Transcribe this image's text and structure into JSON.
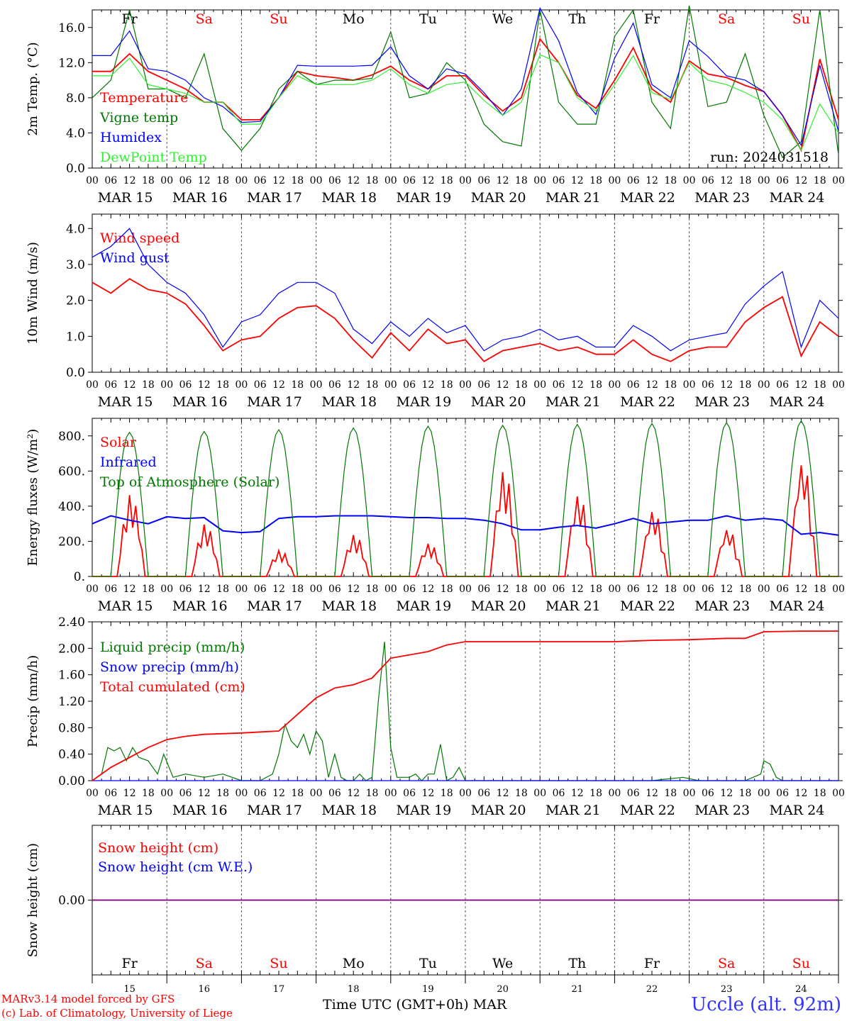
{
  "run_label": "run: 2024031518",
  "x_axis_title": "Time UTC (GMT+0h)",
  "month_label": "MAR",
  "station": "Uccle (alt. 92m)",
  "credits": [
    "MARv3.14 model forced by GFS",
    "(c) Lab. of Climatology, University of Liege"
  ],
  "hour_ticks": [
    "00",
    "06",
    "12",
    "18"
  ],
  "end_tick": "00",
  "date_labels": [
    "MAR 15",
    "MAR 16",
    "MAR 17",
    "MAR 18",
    "MAR 19",
    "MAR 20",
    "MAR 21",
    "MAR 22",
    "MAR 23",
    "MAR 24"
  ],
  "day_numbers": [
    "15",
    "16",
    "17",
    "18",
    "19",
    "20",
    "21",
    "22",
    "23",
    "24"
  ],
  "weekdays": [
    {
      "label": "Fr",
      "weekend": false
    },
    {
      "label": "Sa",
      "weekend": true
    },
    {
      "label": "Su",
      "weekend": true
    },
    {
      "label": "Mo",
      "weekend": false
    },
    {
      "label": "Tu",
      "weekend": false
    },
    {
      "label": "We",
      "weekend": false
    },
    {
      "label": "Th",
      "weekend": false
    },
    {
      "label": "Fr",
      "weekend": false
    },
    {
      "label": "Sa",
      "weekend": true
    },
    {
      "label": "Su",
      "weekend": true
    }
  ],
  "colors": {
    "red": "#ff0000",
    "green": "#007700",
    "blue": "#0000ff",
    "lightgreen": "#33ee33",
    "purple": "#800080",
    "weekend": "#ff0000",
    "station": "#3333ff"
  },
  "chart_data": [
    {
      "type": "line",
      "ylabel": "2m Temp. (°C)",
      "ylim": [
        0,
        18
      ],
      "yticks": [
        "0.0",
        "4.0",
        "8.0",
        "12.0",
        "16.0"
      ],
      "x_unit": "hours since MAR 15 00 UTC",
      "x_range": [
        0,
        240
      ],
      "series": [
        {
          "name": "Temperature",
          "color": "red",
          "x": [
            0,
            6,
            12,
            18,
            24,
            30,
            36,
            42,
            48,
            54,
            60,
            66,
            72,
            78,
            84,
            90,
            96,
            102,
            108,
            114,
            120,
            126,
            132,
            138,
            144,
            150,
            156,
            162,
            168,
            174,
            180,
            186,
            192,
            198,
            204,
            210,
            216,
            222,
            228,
            234,
            240
          ],
          "values": [
            11,
            11,
            13,
            11,
            10,
            9,
            7.5,
            7.5,
            5.5,
            5.5,
            8,
            11,
            10.5,
            10.3,
            10,
            10.6,
            11.6,
            10,
            9,
            10.5,
            10.5,
            8.3,
            6.5,
            8,
            14.7,
            12,
            8.3,
            6.8,
            10,
            13.7,
            9,
            7.5,
            12.2,
            10.7,
            10.3,
            9.4,
            8.7,
            6,
            2,
            12.4,
            5.5
          ]
        },
        {
          "name": "Vigne temp",
          "color": "green",
          "x": [
            0,
            6,
            12,
            18,
            24,
            30,
            36,
            42,
            48,
            54,
            60,
            66,
            72,
            78,
            84,
            90,
            96,
            102,
            108,
            114,
            120,
            126,
            132,
            138,
            144,
            150,
            156,
            162,
            168,
            174,
            180,
            186,
            192,
            198,
            204,
            210,
            216,
            222,
            228,
            234,
            240
          ],
          "values": [
            8,
            10,
            18,
            9,
            9,
            8,
            13,
            4.5,
            2,
            4.5,
            9,
            11,
            9.5,
            10,
            10,
            10.2,
            15.5,
            8,
            8.5,
            12,
            10,
            5,
            3,
            2.5,
            18,
            7.5,
            5,
            5,
            15,
            18,
            7.5,
            4.5,
            18.5,
            7,
            7.5,
            13,
            6,
            1.2,
            3,
            18,
            1.5
          ]
        },
        {
          "name": "Humidex",
          "color": "blue",
          "x": [
            0,
            6,
            12,
            18,
            24,
            30,
            36,
            42,
            48,
            54,
            60,
            66,
            72,
            78,
            84,
            90,
            96,
            102,
            108,
            114,
            120,
            126,
            132,
            138,
            144,
            150,
            156,
            162,
            168,
            174,
            180,
            186,
            192,
            198,
            204,
            210,
            216,
            222,
            228,
            234,
            240
          ],
          "values": [
            12.8,
            12.8,
            15.6,
            11.3,
            11,
            10,
            8,
            7,
            5.2,
            5.3,
            8,
            11.7,
            11.6,
            11.6,
            11.6,
            11.7,
            13.8,
            10.5,
            9,
            11.3,
            10.7,
            8.6,
            6,
            9,
            18.2,
            14.5,
            8.6,
            6.1,
            12.5,
            16.5,
            9.5,
            8,
            14.5,
            12.7,
            10.5,
            10,
            8.7,
            6,
            2.6,
            11.7,
            4.2
          ]
        },
        {
          "name": "DewPoint Temp",
          "color": "lightgreen",
          "x": [
            0,
            6,
            12,
            18,
            24,
            30,
            36,
            42,
            48,
            54,
            60,
            66,
            72,
            78,
            84,
            90,
            96,
            102,
            108,
            114,
            120,
            126,
            132,
            138,
            144,
            150,
            156,
            162,
            168,
            174,
            180,
            186,
            192,
            198,
            204,
            210,
            216,
            222,
            228,
            234,
            240
          ],
          "values": [
            10.5,
            10.5,
            12.5,
            9.5,
            9,
            8.5,
            7.5,
            7.5,
            5,
            5,
            8,
            10.5,
            9.5,
            9.5,
            9.5,
            10,
            11.3,
            9.5,
            8.5,
            9.5,
            9.8,
            7.7,
            6,
            7.5,
            12.9,
            12,
            8,
            6.5,
            9.5,
            12.8,
            8.6,
            7.8,
            12,
            10,
            9.5,
            8.6,
            7.5,
            5.5,
            2,
            7.3,
            4
          ]
        }
      ]
    },
    {
      "type": "line",
      "ylabel": "10m Wind (m/s)",
      "ylim": [
        0,
        4.4
      ],
      "yticks": [
        "0.0",
        "1.0",
        "2.0",
        "3.0",
        "4.0"
      ],
      "x_unit": "hours since MAR 15 00 UTC",
      "x_range": [
        0,
        240
      ],
      "series": [
        {
          "name": "Wind speed",
          "color": "red",
          "x": [
            0,
            6,
            12,
            18,
            24,
            30,
            36,
            42,
            48,
            54,
            60,
            66,
            72,
            78,
            84,
            90,
            96,
            102,
            108,
            114,
            120,
            126,
            132,
            138,
            144,
            150,
            156,
            162,
            168,
            174,
            180,
            186,
            192,
            198,
            204,
            210,
            216,
            222,
            228,
            234,
            240
          ],
          "values": [
            2.5,
            2.2,
            2.6,
            2.3,
            2.2,
            1.9,
            1.3,
            0.6,
            0.9,
            1.0,
            1.5,
            1.8,
            1.85,
            1.5,
            0.9,
            0.4,
            1.1,
            0.6,
            1.2,
            0.8,
            0.9,
            0.3,
            0.6,
            0.7,
            0.8,
            0.6,
            0.7,
            0.5,
            0.5,
            0.9,
            0.5,
            0.3,
            0.6,
            0.7,
            0.7,
            1.4,
            1.8,
            2.1,
            0.45,
            1.4,
            1.0
          ]
        },
        {
          "name": "Wind gust",
          "color": "blue",
          "x": [
            0,
            6,
            12,
            18,
            24,
            30,
            36,
            42,
            48,
            54,
            60,
            66,
            72,
            78,
            84,
            90,
            96,
            102,
            108,
            114,
            120,
            126,
            132,
            138,
            144,
            150,
            156,
            162,
            168,
            174,
            180,
            186,
            192,
            198,
            204,
            210,
            216,
            222,
            228,
            234,
            240
          ],
          "values": [
            3.2,
            3.5,
            4.0,
            3.0,
            2.5,
            2.2,
            1.6,
            0.7,
            1.4,
            1.6,
            2.2,
            2.5,
            2.5,
            2.2,
            1.2,
            0.8,
            1.4,
            1.0,
            1.5,
            1.1,
            1.3,
            0.6,
            0.9,
            1.0,
            1.2,
            0.9,
            1.0,
            0.7,
            0.7,
            1.3,
            1.0,
            0.6,
            0.9,
            1.0,
            1.1,
            1.9,
            2.4,
            2.8,
            0.7,
            2.0,
            1.5
          ]
        }
      ]
    },
    {
      "type": "line",
      "ylabel": "Energy fluxes (W/m²)",
      "ylim": [
        0,
        900
      ],
      "yticks": [
        "0.",
        "200.",
        "400.",
        "600.",
        "800."
      ],
      "x_unit": "hours since MAR 15 00 UTC",
      "x_range": [
        0,
        240
      ],
      "series": [
        {
          "name": "Solar",
          "color": "red",
          "peaks": [
            470,
            300,
            150,
            240,
            190,
            610,
            470,
            380,
            275,
            665
          ],
          "values_note": "daily"
        },
        {
          "name": "Infrared",
          "color": "blue",
          "x": [
            0,
            6,
            12,
            18,
            24,
            30,
            36,
            42,
            48,
            54,
            60,
            66,
            72,
            78,
            84,
            90,
            96,
            102,
            108,
            114,
            120,
            126,
            132,
            138,
            144,
            150,
            156,
            162,
            168,
            174,
            180,
            186,
            192,
            198,
            204,
            210,
            216,
            222,
            228,
            234,
            240
          ],
          "values": [
            300,
            345,
            320,
            300,
            340,
            330,
            335,
            260,
            250,
            255,
            330,
            340,
            340,
            345,
            345,
            345,
            340,
            335,
            335,
            330,
            330,
            320,
            300,
            265,
            265,
            280,
            290,
            275,
            300,
            330,
            300,
            310,
            320,
            320,
            345,
            320,
            330,
            320,
            240,
            250,
            235
          ]
        },
        {
          "name": "Top of Atmosphere (Solar)",
          "color": "green",
          "peaks": [
            820,
            825,
            835,
            845,
            855,
            860,
            865,
            870,
            875,
            885
          ]
        }
      ]
    },
    {
      "type": "line",
      "ylabel": "Precip (mm/h)",
      "ylim": [
        0,
        2.4
      ],
      "yticks": [
        "0.00",
        "0.40",
        "0.80",
        "1.20",
        "1.60",
        "2.00",
        "2.40"
      ],
      "x_unit": "hours since MAR 15 00 UTC",
      "x_range": [
        0,
        240
      ],
      "series": [
        {
          "name": "Liquid precip (mm/h)",
          "color": "green",
          "x": [
            0,
            3,
            5,
            7,
            9,
            11,
            13,
            15,
            18,
            21,
            23,
            26,
            30,
            36,
            42,
            48,
            54,
            58,
            60,
            62,
            64,
            66,
            68,
            70,
            72,
            74,
            76,
            78,
            80,
            82,
            84,
            86,
            88,
            90,
            92,
            94,
            96,
            98,
            100,
            102,
            104,
            106,
            108,
            110,
            112,
            114,
            116,
            118,
            120,
            180,
            190,
            195,
            198,
            200,
            210,
            215,
            216,
            218,
            220,
            222,
            240
          ],
          "values": [
            0,
            0.1,
            0.5,
            0.45,
            0.5,
            0.3,
            0.5,
            0.35,
            0.3,
            0.1,
            0.4,
            0.05,
            0.1,
            0.05,
            0.1,
            0,
            0,
            0.1,
            0.4,
            0.85,
            0.6,
            0.5,
            0.7,
            0.4,
            0.75,
            0.6,
            0.05,
            0.4,
            0.05,
            0,
            0,
            0.1,
            0,
            0.05,
            1.2,
            2.1,
            0.5,
            0.05,
            0.05,
            0.05,
            0.1,
            0,
            0.1,
            0.1,
            0.55,
            0,
            0.05,
            0.2,
            0,
            0,
            0.05,
            0,
            0,
            0,
            0,
            0.1,
            0.3,
            0.25,
            0.05,
            0,
            0
          ]
        },
        {
          "name": "Snow precip (mm/h)",
          "color": "blue",
          "x": [
            0,
            240
          ],
          "values": [
            0,
            0
          ]
        },
        {
          "name": "Total cumulated (cm)",
          "color": "red",
          "x": [
            0,
            6,
            12,
            18,
            24,
            30,
            36,
            48,
            60,
            66,
            72,
            78,
            84,
            90,
            96,
            108,
            114,
            120,
            168,
            180,
            192,
            204,
            210,
            216,
            228,
            240
          ],
          "values": [
            0,
            0.2,
            0.35,
            0.5,
            0.62,
            0.67,
            0.7,
            0.72,
            0.75,
            1.0,
            1.25,
            1.4,
            1.45,
            1.55,
            1.85,
            1.95,
            2.05,
            2.1,
            2.1,
            2.12,
            2.13,
            2.15,
            2.15,
            2.25,
            2.26,
            2.26
          ]
        }
      ]
    },
    {
      "type": "line",
      "ylabel": "Snow height (cm)",
      "ylim": [
        -0.1,
        0.1
      ],
      "yticks": [
        "0.00"
      ],
      "x_unit": "hours since MAR 15 00 UTC",
      "x_range": [
        0,
        240
      ],
      "series": [
        {
          "name": "Snow height (cm)",
          "color": "red",
          "x": [
            0,
            240
          ],
          "values": [
            0,
            0
          ]
        },
        {
          "name": "Snow height (cm W.E.)",
          "color": "blue",
          "x": [
            0,
            240
          ],
          "values": [
            0,
            0
          ]
        }
      ]
    }
  ]
}
